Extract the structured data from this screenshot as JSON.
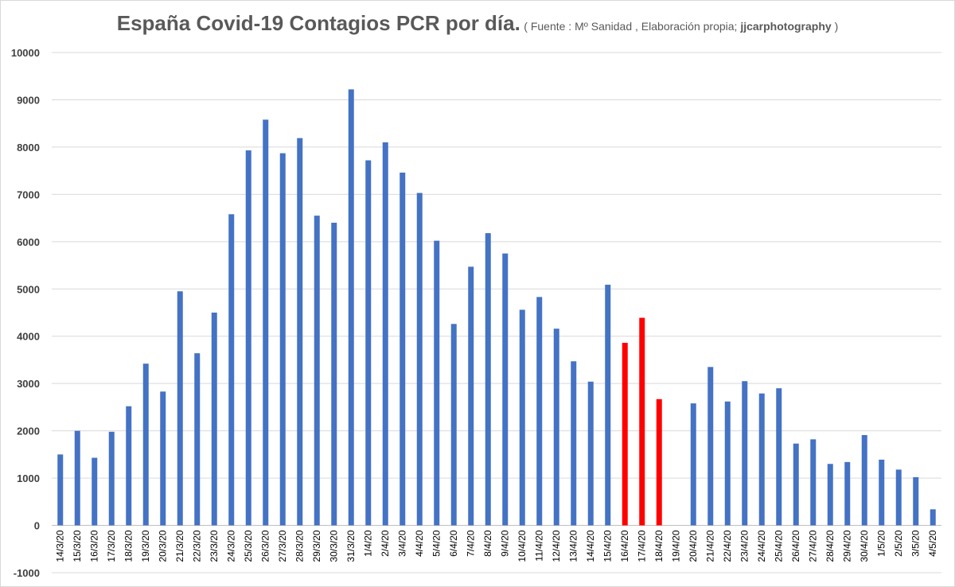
{
  "title": {
    "main": "España Covid-19 Contagios PCR por día.",
    "sub_prefix": "( Fuente : Mº Sanidad , Elaboración propia; ",
    "sub_bold": "jjcarphotography",
    "sub_suffix": " )"
  },
  "colors": {
    "bar_default": "#4472c4",
    "bar_highlight": "#ff0000",
    "grid": "#d9d9d9"
  },
  "chart_data": {
    "type": "bar",
    "title": "España Covid-19 Contagios PCR por día.",
    "xlabel": "",
    "ylabel": "",
    "ylim": [
      -1000,
      10000
    ],
    "yticks": [
      -1000,
      0,
      1000,
      2000,
      3000,
      4000,
      5000,
      6000,
      7000,
      8000,
      9000,
      10000
    ],
    "grid": true,
    "legend": "none",
    "categories": [
      "14/3/20",
      "15/3/20",
      "16/3/20",
      "17/3/20",
      "18/3/20",
      "19/3/20",
      "20/3/20",
      "21/3/20",
      "22/3/20",
      "23/3/20",
      "24/3/20",
      "25/3/20",
      "26/3/20",
      "27/3/20",
      "28/3/20",
      "29/3/20",
      "30/3/20",
      "31/3/20",
      "1/4/20",
      "2/4/20",
      "3/4/20",
      "4/4/20",
      "5/4/20",
      "6/4/20",
      "7/4/20",
      "8/4/20",
      "9/4/20",
      "10/4/20",
      "11/4/20",
      "12/4/20",
      "13/4/20",
      "14/4/20",
      "15/4/20",
      "16/4/20",
      "17/4/20",
      "18/4/20",
      "19/4/20",
      "20/4/20",
      "21/4/20",
      "22/4/20",
      "23/4/20",
      "24/4/20",
      "25/4/20",
      "26/4/20",
      "27/4/20",
      "28/4/20",
      "29/4/20",
      "30/4/20",
      "1/5/20",
      "2/5/20",
      "3/5/20",
      "4/5/20"
    ],
    "values": [
      1500,
      2000,
      1430,
      1980,
      2520,
      3420,
      2830,
      4950,
      3640,
      4500,
      6580,
      7930,
      8580,
      7870,
      8190,
      6550,
      6400,
      9220,
      7720,
      8100,
      7460,
      7030,
      6020,
      4260,
      5470,
      6180,
      5750,
      4560,
      4830,
      4160,
      3470,
      3040,
      5090,
      3860,
      4390,
      2670,
      null,
      2580,
      3350,
      2620,
      3050,
      2790,
      2900,
      1730,
      1820,
      1300,
      1340,
      1910,
      1390,
      1180,
      1020,
      340
    ],
    "highlight_categories": [
      "16/4/20",
      "17/4/20",
      "18/4/20"
    ]
  }
}
